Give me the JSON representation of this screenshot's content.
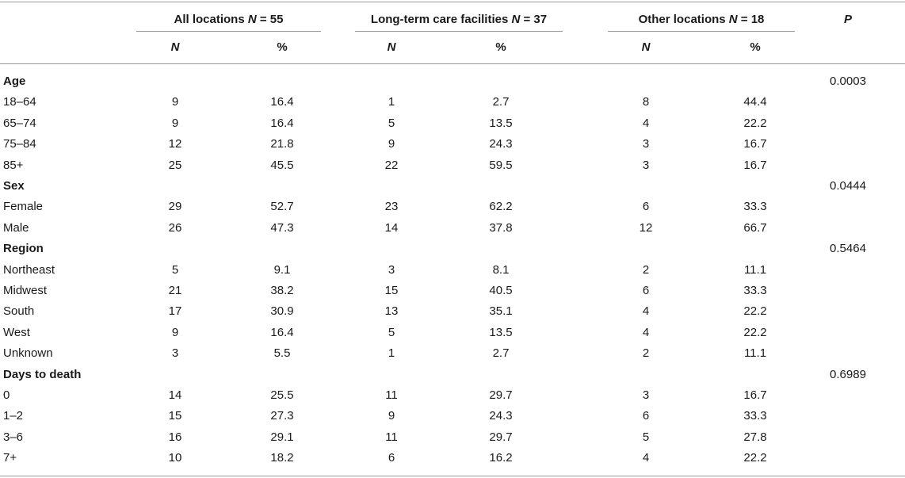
{
  "headers": {
    "group1_label": "All locations ",
    "group1_n": "N",
    "group1_eq": " = 55",
    "group2_label": "Long-term care facilities ",
    "group2_n": "N",
    "group2_eq": " = 37",
    "group3_label": "Other locations ",
    "group3_n": "N",
    "group3_eq": " = 18",
    "p": "P",
    "n": "N",
    "pct": "%"
  },
  "rows": [
    {
      "type": "section",
      "label": "Age",
      "p": "0.0003"
    },
    {
      "type": "data",
      "label": "18–64",
      "v": [
        "9",
        "16.4",
        "1",
        "2.7",
        "8",
        "44.4"
      ]
    },
    {
      "type": "data",
      "label": "65–74",
      "v": [
        "9",
        "16.4",
        "5",
        "13.5",
        "4",
        "22.2"
      ]
    },
    {
      "type": "data",
      "label": "75–84",
      "v": [
        "12",
        "21.8",
        "9",
        "24.3",
        "3",
        "16.7"
      ]
    },
    {
      "type": "data",
      "label": "85+",
      "v": [
        "25",
        "45.5",
        "22",
        "59.5",
        "3",
        "16.7"
      ]
    },
    {
      "type": "section",
      "label": "Sex",
      "p": "0.0444"
    },
    {
      "type": "data",
      "label": "Female",
      "v": [
        "29",
        "52.7",
        "23",
        "62.2",
        "6",
        "33.3"
      ]
    },
    {
      "type": "data",
      "label": "Male",
      "v": [
        "26",
        "47.3",
        "14",
        "37.8",
        "12",
        "66.7"
      ]
    },
    {
      "type": "section",
      "label": "Region",
      "p": "0.5464"
    },
    {
      "type": "data",
      "label": "Northeast",
      "v": [
        "5",
        "9.1",
        "3",
        "8.1",
        "2",
        "11.1"
      ]
    },
    {
      "type": "data",
      "label": "Midwest",
      "v": [
        "21",
        "38.2",
        "15",
        "40.5",
        "6",
        "33.3"
      ]
    },
    {
      "type": "data",
      "label": "South",
      "v": [
        "17",
        "30.9",
        "13",
        "35.1",
        "4",
        "22.2"
      ]
    },
    {
      "type": "data",
      "label": "West",
      "v": [
        "9",
        "16.4",
        "5",
        "13.5",
        "4",
        "22.2"
      ]
    },
    {
      "type": "data",
      "label": "Unknown",
      "v": [
        "3",
        "5.5",
        "1",
        "2.7",
        "2",
        "11.1"
      ]
    },
    {
      "type": "section",
      "label": "Days to death",
      "p": "0.6989"
    },
    {
      "type": "data",
      "label": "0",
      "v": [
        "14",
        "25.5",
        "11",
        "29.7",
        "3",
        "16.7"
      ]
    },
    {
      "type": "data",
      "label": "1–2",
      "v": [
        "15",
        "27.3",
        "9",
        "24.3",
        "6",
        "33.3"
      ]
    },
    {
      "type": "data",
      "label": "3–6",
      "v": [
        "16",
        "29.1",
        "11",
        "29.7",
        "5",
        "27.8"
      ]
    },
    {
      "type": "data",
      "label": "7+",
      "v": [
        "10",
        "18.2",
        "6",
        "16.2",
        "4",
        "22.2"
      ]
    }
  ]
}
